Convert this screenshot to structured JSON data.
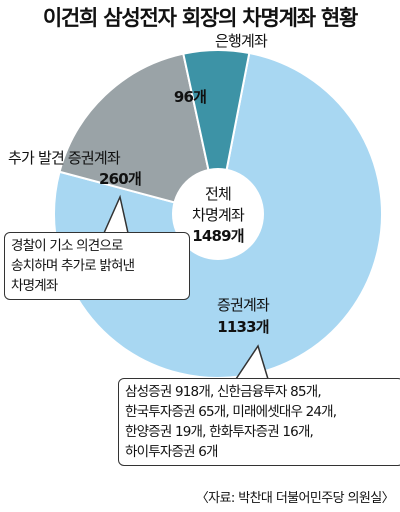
{
  "chart_data": {
    "type": "pie",
    "title": "이건희 삼성전자 회장의 차명계좌 현황",
    "center": {
      "label_line1": "전체",
      "label_line2": "차명계좌",
      "value": "1489개"
    },
    "total": 1489,
    "slices": [
      {
        "name": "증권계좌",
        "value": 1133,
        "value_label": "1133개",
        "color": "#a8d7f2"
      },
      {
        "name": "추가 발견 증권계좌",
        "value": 260,
        "value_label": "260개",
        "color": "#9aa3a7"
      },
      {
        "name": "은행계좌",
        "value": 96,
        "value_label": "96개",
        "color": "#3d93a6"
      }
    ],
    "annotations": {
      "prosecution": [
        "경찰이 기소 의견으로",
        "송치하며 추가로 밝혀낸",
        "차명계좌"
      ],
      "breakdown": [
        "삼성증권 918개, 신한금융투자 85개,",
        "한국투자증권 65개, 미래에셋대우 24개,",
        "한양증권 19개, 한화투자증권 16개,",
        "하이투자증권 6개"
      ]
    },
    "source": "〈자료: 박찬대 더불어민주당 의원실〉"
  }
}
